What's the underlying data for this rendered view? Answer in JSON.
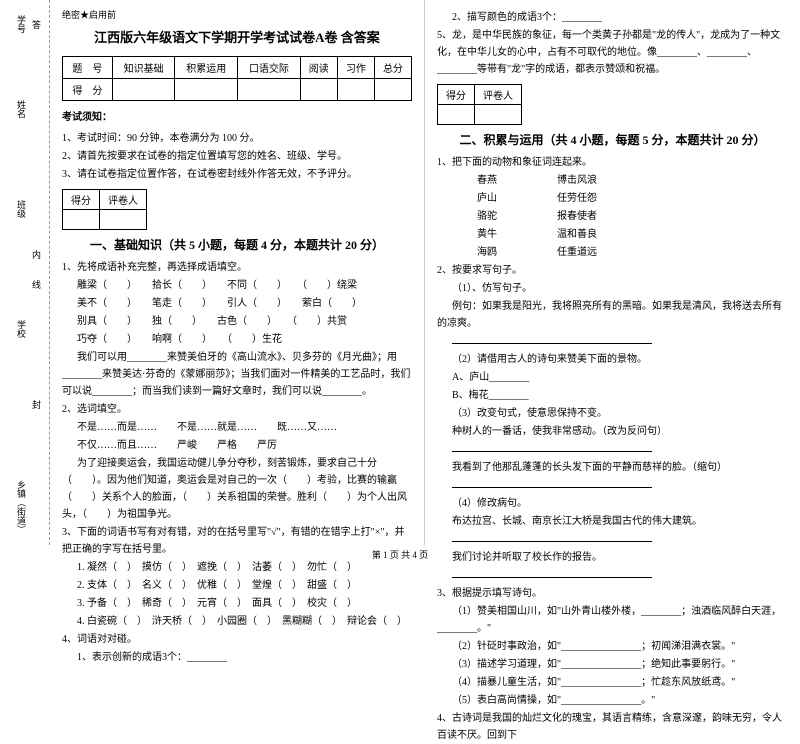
{
  "sidebar": {
    "top": "题",
    "labels": [
      "学号",
      "姓名",
      "班级",
      "学校",
      "乡镇（街道）"
    ],
    "inner": "内",
    "cut": "线",
    "fold": "封",
    "dots": "答"
  },
  "header": {
    "tag": "绝密★启用前",
    "title": "江西版六年级语文下学期开学考试试卷A卷 含答案"
  },
  "scoreTable": {
    "r1": [
      "题　号",
      "知识基础",
      "积累运用",
      "口语交际",
      "阅读",
      "习作",
      "总分"
    ],
    "r2": [
      "得　分",
      "",
      "",
      "",
      "",
      "",
      ""
    ]
  },
  "notice": {
    "head": "考试须知：",
    "n1": "1、考试时间：90 分钟，本卷满分为 100 分。",
    "n2": "2、请首先按要求在试卷的指定位置填写您的姓名、班级、学号。",
    "n3": "3、请在试卷指定位置作答，在试卷密封线外作答无效，不予评分。"
  },
  "smallTable": {
    "c1": "得分",
    "c2": "评卷人"
  },
  "sec1": {
    "title": "一、基础知识（共 5 小题，每题 4 分，本题共计 20 分）",
    "q1": "1、先将成语补充完整，再选择成语填空。",
    "q1a": "雕梁（　　）　　拾长（　　）　　不同（　　）　　（　　）绕梁",
    "q1b": "美不（　　）　　笔走（　　）　　引人（　　）　　萦白（　　）",
    "q1c": "别具（　　）　　独（　　）　　古色（　　）　　（　　）共赏",
    "q1d": "巧夺（　　）　　响啊（　　）　　（　　）生花",
    "q1e": "我们可以用________来赞美伯牙的《高山流水》、贝多芬的《月光曲》；用________来赞美达·芬奇的《蒙娜丽莎》；当我们面对一件精美的工艺品时，我们可以说________；而当我们读到一篇好文章时，我们可以说________。",
    "q2": "2、选词填空。",
    "q2a": "不是……而是……　　不是……就是……　　既……又……",
    "q2b": "不仅……而且……　　严峻　　严格　　严厉",
    "q2c": "为了迎接奥运会，我国运动健儿争分夺秒，刻苦锻炼，要求自己十分（　　）。因为他们知道，奥运会是对自己的一次（　　）考验，比赛的输赢（　　）关系个人的脸面，（　　）关系祖国的荣誉。胜利（　　）为个人出风头，（　　）为祖国争光。",
    "q3": "3、下面的词语书写有对有错，对的在括号里写\"√\"，有错的在错字上打\"×\"，并把正确的字写在括号里。",
    "q3a": "1. 凝然（　）　摸仿（　）　遮挽（　）　沽萎（　）　勿忙（　）",
    "q3b": "2. 支体（　）　名义（　）　优稚（　）　堂煌（　）　甜盛（　）",
    "q3c": "3. 予备（　）　稀奇（　）　元宵（　）　面具（　）　校灾（　）",
    "q3d": "4. 白瓷碗（　）　浒天桥（　）　小园圈（　）　黑糊糊（　）　辩论会（　）",
    "q4": "4、词语对对碰。",
    "q4a": "1、表示创新的成语3个：________"
  },
  "sec1r": {
    "q4b": "2、描写颜色的成语3个：________",
    "q5": "5、龙，是中华民族的象征，每一个类黄子孙都是\"龙的传人\"，龙成为了一种文化，在中华儿女的心中，占有不可取代的地位。像________、________、________等带有\"龙\"字的成语，都表示赞颂和祝福。"
  },
  "sec2": {
    "title": "二、积累与运用（共 4 小题，每题 5 分，本题共计 20 分）",
    "q1": "1、把下面的动物和象征词连起来。",
    "q1a": "春燕　　　　　　博击风浪",
    "q1b": "庐山　　　　　　任劳任怨",
    "q1c": "骆驼　　　　　　报春使者",
    "q1d": "黄牛　　　　　　温和善良",
    "q1e": "海鸥　　　　　　任重道远",
    "q2": "2、按要求写句子。",
    "q2a": "（1）、仿写句子。",
    "q2b": "例句：如果我是阳光，我将照亮所有的黑暗。如果我是清风，我将送去所有的凉爽。",
    "q2blank": "________________________",
    "q2c": "（2）请借用古人的诗句来赞美下面的景物。",
    "q2c1": "A、庐山________",
    "q2c2": "B、梅花________",
    "q2d": "（3）改变句式，使意思保持不变。",
    "q2d1": "种树人的一番话，使我非常感动。（改为反问句）",
    "q2d2": "________________________",
    "q2e": "我看到了他那乱蓬蓬的长头发下面的平静而慈祥的脸。（缩句）",
    "q2f": "________________________",
    "q2g": "（4）修改病句。",
    "q2g1": "布达拉宫、长城、南京长江大桥是我国古代的伟大建筑。",
    "q2g2": "________________________",
    "q2h": "我们讨论并听取了校长作的报告。",
    "q2i": "________________________",
    "q3": "3、根据提示填写诗句。",
    "q3a": "（1）赞美相国山川，如\"山外青山楼外楼，________；浊酒临风醉白天涯，________。\"",
    "q3b": "（2）针砭时事政治，如\"________________；初闻涕泪满衣裳。\"",
    "q3c": "（3）描述学习道理，如\"________________；绝知此事要躬行。\"",
    "q3d": "（4）描暴儿童生活，如\"________________；忙趁东风放纸鸢。\"",
    "q3e": "（5）表白高尚情操，如\"________________。\"",
    "q4": "4、古诗词是我国的灿烂文化的瑰宝，其语言精练，含意深邃，韵味无穷，令人百读不厌。回到下"
  },
  "footer": "第 1 页 共 4 页"
}
